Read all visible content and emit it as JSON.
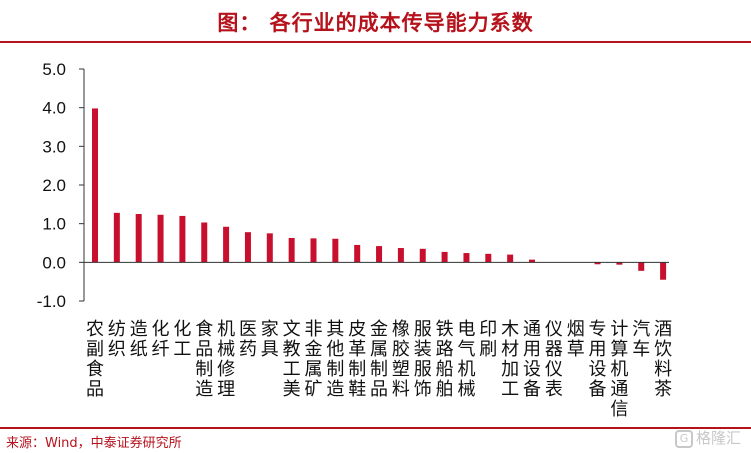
{
  "header": {
    "title": "图：  各行业的成本传导能力系数"
  },
  "footer": {
    "source": "来源：Wind，中泰证券研究所",
    "watermark": "格隆汇"
  },
  "colors": {
    "accent": "#b5121b",
    "bar": "#c8102e"
  },
  "chart_data": {
    "type": "bar",
    "title": "",
    "xlabel": "",
    "ylabel": "",
    "ylim": [
      -1.0,
      5.0
    ],
    "yticks": [
      "5.0",
      "4.0",
      "3.0",
      "2.0",
      "1.0",
      "0.0",
      "-1.0"
    ],
    "categories": [
      "农副食品",
      "纺织",
      "造纸",
      "化纤",
      "化工",
      "食品制造",
      "机械修理",
      "医药",
      "家具",
      "文教工美",
      "非金属矿",
      "其他制造",
      "皮革制鞋",
      "金属制品",
      "橡胶塑料",
      "服装服饰",
      "铁路船舶",
      "电气机械",
      "印刷",
      "木材加工",
      "通用设备",
      "仪器仪表",
      "烟草",
      "专用设备",
      "计算机通信",
      "汽车",
      "酒饮料茶"
    ],
    "labels": [
      [
        "农",
        "副",
        "食",
        "品"
      ],
      [
        "纺",
        "织"
      ],
      [
        "造",
        "纸"
      ],
      [
        "化",
        "纤"
      ],
      [
        "化",
        "工"
      ],
      [
        "食",
        "品",
        "制",
        "造"
      ],
      [
        "机",
        "械",
        "修",
        "理"
      ],
      [
        "医",
        "药"
      ],
      [
        "家",
        "具"
      ],
      [
        "文",
        "教",
        "工",
        "美"
      ],
      [
        "非",
        "金",
        "属",
        "矿"
      ],
      [
        "其",
        "他",
        "制",
        "造"
      ],
      [
        "皮",
        "革",
        "制",
        "鞋"
      ],
      [
        "金",
        "属",
        "制",
        "品"
      ],
      [
        "橡",
        "胶",
        "塑",
        "料"
      ],
      [
        "服",
        "装",
        "服",
        "饰"
      ],
      [
        "铁",
        "路",
        "船",
        "舶"
      ],
      [
        "电",
        "气",
        "机",
        "械"
      ],
      [
        "印",
        "刷"
      ],
      [
        "木",
        "材",
        "加",
        "工"
      ],
      [
        "通",
        "用",
        "设",
        "备"
      ],
      [
        "仪",
        "器",
        "仪",
        "表"
      ],
      [
        "烟",
        "草"
      ],
      [
        "专",
        "用",
        "设",
        "备"
      ],
      [
        "计",
        "算",
        "机",
        "通",
        "信"
      ],
      [
        "汽",
        "车"
      ],
      [
        "酒",
        "饮",
        "料",
        "茶"
      ]
    ],
    "values": [
      3.98,
      1.28,
      1.25,
      1.23,
      1.2,
      1.03,
      0.92,
      0.78,
      0.75,
      0.63,
      0.62,
      0.61,
      0.45,
      0.42,
      0.37,
      0.35,
      0.27,
      0.24,
      0.22,
      0.2,
      0.07,
      0.0,
      0.0,
      -0.05,
      -0.06,
      -0.22,
      -0.45
    ]
  }
}
